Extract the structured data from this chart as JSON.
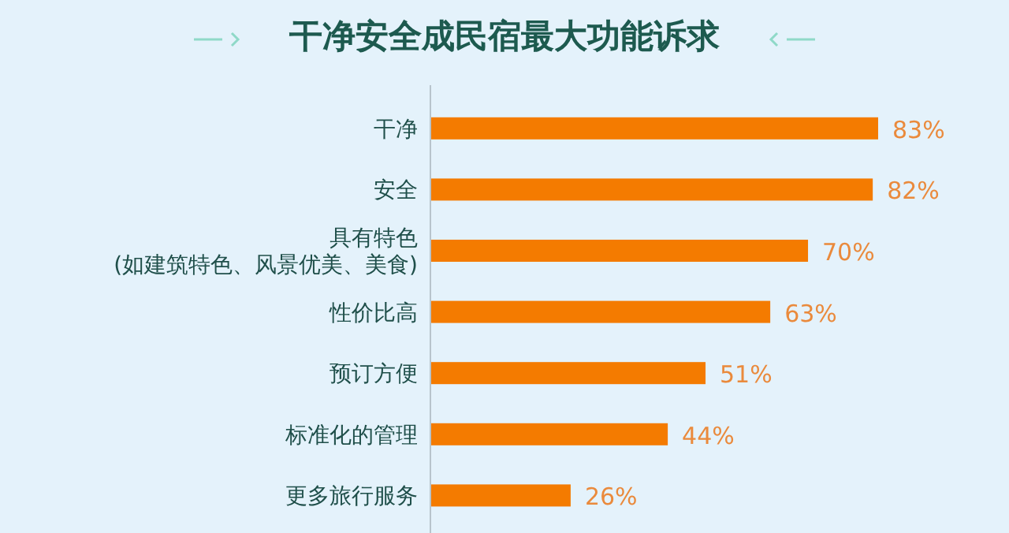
{
  "chart_data": {
    "type": "bar",
    "orientation": "horizontal",
    "title": "干净安全成民宿最大功能诉求",
    "categories": [
      "干净",
      "安全",
      "具有特色\n(如建筑特色、风景优美、美食)",
      "性价比高",
      "预订方便",
      "标准化的管理",
      "更多旅行服务"
    ],
    "values": [
      83,
      82,
      70,
      63,
      51,
      44,
      26
    ],
    "value_labels": [
      "83%",
      "82%",
      "70%",
      "63%",
      "51%",
      "44%",
      "26%"
    ],
    "color": "#f47b00"
  }
}
